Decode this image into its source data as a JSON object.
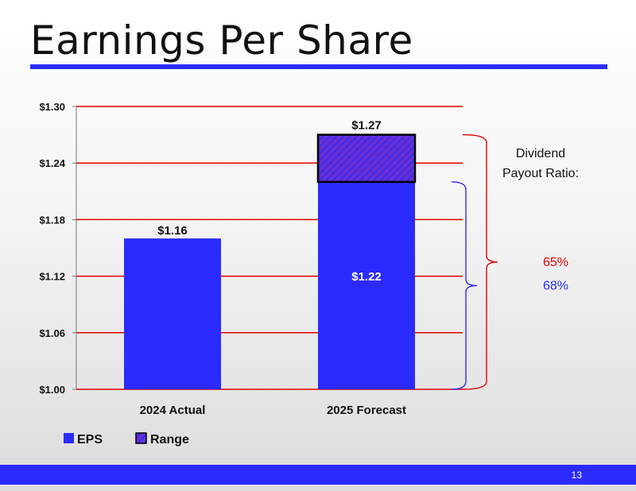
{
  "slide": {
    "title": "Earnings Per Share",
    "page_number": "13",
    "accent_color": "#2b2bff"
  },
  "chart_data": {
    "type": "bar",
    "title": "",
    "xlabel": "",
    "ylabel": "",
    "ylim": [
      1.0,
      1.3
    ],
    "yticks": [
      1.0,
      1.06,
      1.12,
      1.18,
      1.24,
      1.3
    ],
    "ytick_labels": [
      "$1.00",
      "$1.06",
      "$1.12",
      "$1.18",
      "$1.24",
      "$1.30"
    ],
    "categories": [
      "2024 Actual",
      "2025 Forecast"
    ],
    "series": [
      {
        "name": "EPS",
        "values": [
          1.16,
          1.22
        ],
        "labels": [
          "$1.16",
          "$1.22"
        ],
        "color": "#2b2bff"
      },
      {
        "name": "Range",
        "base": [
          null,
          1.22
        ],
        "values": [
          null,
          1.27
        ],
        "labels": [
          null,
          "$1.27"
        ],
        "color": "#6a2ecf"
      }
    ],
    "gridline_color": "#e00000",
    "legend": {
      "placement": "bottom-left",
      "entries": [
        "EPS",
        "Range"
      ]
    },
    "annotations": {
      "heading_line1": "Dividend",
      "heading_line2": "Payout Ratio:",
      "ratio_high": {
        "text": "65%",
        "color": "#e00000",
        "brace_from": 1.27,
        "brace_to": 1.0
      },
      "ratio_low": {
        "text": "68%",
        "color": "#2b2bff",
        "brace_from": 1.22,
        "brace_to": 1.0
      }
    }
  }
}
